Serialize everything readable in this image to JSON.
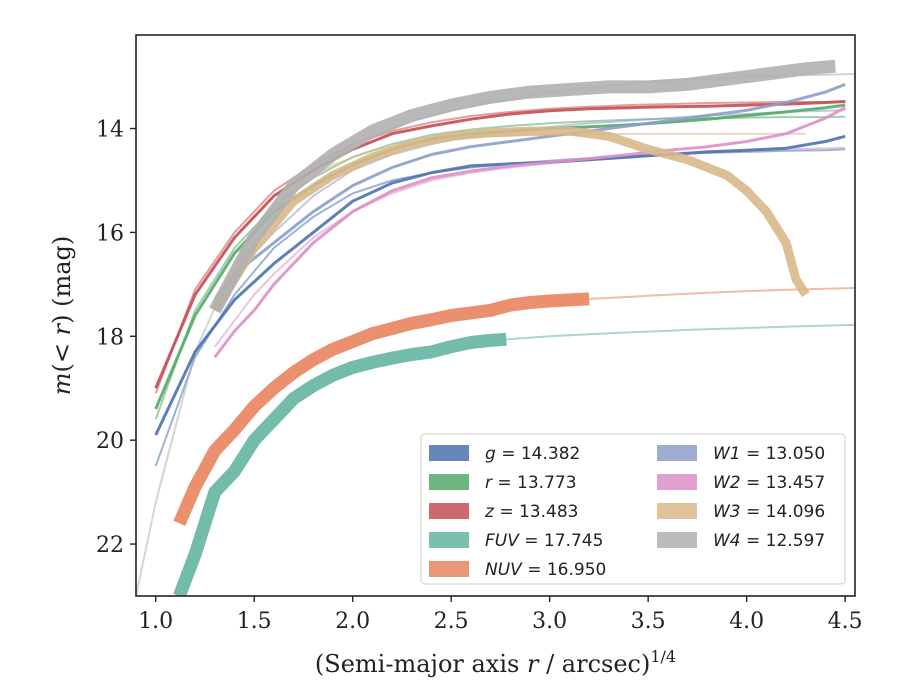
{
  "chart_data": {
    "type": "line",
    "xlabel": "(Semi-major axis r / arcsec)^1/4",
    "xlabel_parts": {
      "main": "(Semi-major axis ",
      "var": "r",
      "rest": " / arcsec)",
      "sup": "1/4"
    },
    "ylabel": "m(< r) (mag)",
    "ylabel_parts": {
      "var": "m",
      "rest": "(< ",
      "var2": "r",
      "close": ") (mag)"
    },
    "xlim": [
      0.9,
      4.55
    ],
    "ylim": [
      23.0,
      12.2
    ],
    "y_inverted": true,
    "xticks": [
      "1.0",
      "1.5",
      "2.0",
      "2.5",
      "3.0",
      "3.5",
      "4.0",
      "4.5"
    ],
    "yticks": [
      "14",
      "16",
      "18",
      "20",
      "22"
    ],
    "grid": false,
    "legend_placement": "lower-right",
    "legend_columns": 2,
    "series": [
      {
        "name": "g",
        "value": "14.382",
        "color": "#4c72b0",
        "x": [
          1.0,
          1.2,
          1.4,
          1.6,
          1.8,
          2.0,
          2.2,
          2.4,
          2.6,
          2.8,
          3.0,
          3.2,
          3.4,
          3.6,
          3.8,
          4.0,
          4.2,
          4.4,
          4.5
        ],
        "y": [
          19.9,
          18.3,
          17.3,
          16.6,
          16.0,
          15.4,
          15.05,
          14.85,
          14.72,
          14.68,
          14.65,
          14.6,
          14.55,
          14.5,
          14.45,
          14.42,
          14.38,
          14.25,
          14.15
        ],
        "model_y": [
          20.5,
          18.4,
          17.2,
          16.3,
          15.7,
          15.25,
          15.0,
          14.85,
          14.75,
          14.68,
          14.62,
          14.57,
          14.53,
          14.5,
          14.47,
          14.45,
          14.43,
          14.42,
          14.4
        ]
      },
      {
        "name": "r",
        "value": "13.773",
        "color": "#55a868",
        "x": [
          1.0,
          1.2,
          1.4,
          1.6,
          1.8,
          2.0,
          2.2,
          2.4,
          2.6,
          2.8,
          3.0,
          3.2,
          3.4,
          3.6,
          3.8,
          4.0,
          4.2,
          4.4,
          4.5
        ],
        "y": [
          19.4,
          17.6,
          16.4,
          15.6,
          15.1,
          14.7,
          14.4,
          14.2,
          14.1,
          14.05,
          14.0,
          13.97,
          13.93,
          13.88,
          13.82,
          13.75,
          13.68,
          13.6,
          13.55
        ],
        "model_y": [
          19.6,
          17.5,
          16.3,
          15.5,
          14.95,
          14.55,
          14.3,
          14.12,
          14.02,
          13.95,
          13.9,
          13.86,
          13.83,
          13.81,
          13.8,
          13.79,
          13.78,
          13.78,
          13.77
        ]
      },
      {
        "name": "z",
        "value": "13.483",
        "color": "#c44e52",
        "x": [
          1.0,
          1.2,
          1.4,
          1.6,
          1.8,
          2.0,
          2.2,
          2.4,
          2.6,
          2.8,
          3.0,
          3.2,
          3.4,
          3.6,
          3.8,
          4.0,
          4.2,
          4.4,
          4.5
        ],
        "y": [
          19.0,
          17.2,
          16.1,
          15.3,
          14.8,
          14.4,
          14.1,
          13.95,
          13.82,
          13.72,
          13.66,
          13.62,
          13.6,
          13.58,
          13.57,
          13.55,
          13.53,
          13.5,
          13.48
        ],
        "model_y": [
          19.1,
          17.1,
          16.0,
          15.2,
          14.7,
          14.3,
          14.05,
          13.88,
          13.76,
          13.68,
          13.62,
          13.58,
          13.55,
          13.53,
          13.51,
          13.5,
          13.49,
          13.49,
          13.48
        ]
      },
      {
        "name": "FUV",
        "value": "17.745",
        "color": "#64b5a0",
        "x": [
          1.12,
          1.2,
          1.3,
          1.4,
          1.5,
          1.6,
          1.7,
          1.8,
          1.9,
          2.0,
          2.1,
          2.2,
          2.3,
          2.4,
          2.5,
          2.6,
          2.7,
          2.78
        ],
        "y": [
          23.0,
          22.2,
          21.0,
          20.6,
          20.0,
          19.6,
          19.2,
          18.95,
          18.75,
          18.6,
          18.5,
          18.42,
          18.35,
          18.3,
          18.2,
          18.12,
          18.08,
          18.06
        ],
        "model_x": [
          2.78,
          3.0,
          3.25,
          3.5,
          3.75,
          4.0,
          4.25,
          4.55
        ],
        "model_y": [
          18.06,
          18.0,
          17.95,
          17.91,
          17.87,
          17.84,
          17.81,
          17.78
        ]
      },
      {
        "name": "NUV",
        "value": "16.950",
        "color": "#e8845f",
        "x": [
          1.12,
          1.2,
          1.3,
          1.4,
          1.5,
          1.6,
          1.7,
          1.8,
          1.9,
          2.0,
          2.1,
          2.2,
          2.3,
          2.4,
          2.5,
          2.6,
          2.7,
          2.8,
          2.9,
          3.0,
          3.1,
          3.2
        ],
        "y": [
          21.6,
          20.9,
          20.2,
          19.8,
          19.35,
          19.0,
          18.7,
          18.45,
          18.25,
          18.1,
          17.95,
          17.85,
          17.75,
          17.68,
          17.6,
          17.55,
          17.5,
          17.4,
          17.35,
          17.32,
          17.3,
          17.28
        ],
        "model_x": [
          3.2,
          3.5,
          3.75,
          4.0,
          4.25,
          4.55
        ],
        "model_y": [
          17.28,
          17.22,
          17.17,
          17.13,
          17.1,
          17.07
        ]
      },
      {
        "name": "W1",
        "value": "13.050",
        "color": "#8c9dc8",
        "x": [
          1.3,
          1.4,
          1.5,
          1.6,
          1.8,
          2.0,
          2.2,
          2.4,
          2.6,
          2.8,
          3.0,
          3.2,
          3.4,
          3.6,
          3.8,
          4.0,
          4.2,
          4.4,
          4.5
        ],
        "y": [
          17.3,
          16.8,
          16.5,
          16.2,
          15.6,
          15.1,
          14.75,
          14.5,
          14.35,
          14.25,
          14.15,
          14.05,
          13.95,
          13.85,
          13.75,
          13.65,
          13.5,
          13.3,
          13.15
        ],
        "model_y": [
          17.4,
          16.9,
          16.4,
          16.0,
          15.3,
          14.8,
          14.5,
          14.3,
          14.15,
          14.05,
          13.97,
          13.9,
          13.85,
          13.8,
          13.75,
          13.72,
          13.68,
          13.66,
          13.65
        ]
      },
      {
        "name": "W2",
        "value": "13.457",
        "color": "#dd8fc8",
        "x": [
          1.3,
          1.4,
          1.5,
          1.6,
          1.8,
          2.0,
          2.2,
          2.4,
          2.6,
          2.8,
          3.0,
          3.2,
          3.4,
          3.6,
          3.8,
          4.0,
          4.2,
          4.4,
          4.5
        ],
        "y": [
          18.4,
          17.9,
          17.5,
          17.0,
          16.2,
          15.6,
          15.2,
          14.95,
          14.82,
          14.72,
          14.65,
          14.58,
          14.5,
          14.42,
          14.35,
          14.25,
          14.1,
          13.8,
          13.6
        ],
        "model_y": [
          18.2,
          17.7,
          17.2,
          16.8,
          16.1,
          15.6,
          15.25,
          15.0,
          14.85,
          14.75,
          14.67,
          14.6,
          14.55,
          14.5,
          14.46,
          14.43,
          14.4,
          14.38,
          14.37
        ]
      },
      {
        "name": "W3",
        "value": "14.096",
        "color": "#d8b88a",
        "x": [
          1.3,
          1.5,
          1.7,
          1.9,
          2.1,
          2.3,
          2.5,
          2.7,
          2.9,
          3.1,
          3.3,
          3.5,
          3.7,
          3.9,
          4.0,
          4.1,
          4.2,
          4.25,
          4.3
        ],
        "y": [
          17.5,
          16.3,
          15.4,
          14.9,
          14.55,
          14.3,
          14.15,
          14.08,
          14.05,
          14.05,
          14.15,
          14.4,
          14.6,
          14.9,
          15.2,
          15.6,
          16.2,
          16.9,
          17.2
        ],
        "model_y": [
          17.4,
          16.0,
          15.2,
          14.7,
          14.42,
          14.27,
          14.19,
          14.15,
          14.13,
          14.12,
          14.11,
          14.1,
          14.1,
          14.1,
          14.1,
          14.1,
          14.1,
          14.1,
          14.1
        ]
      },
      {
        "name": "W4",
        "value": "12.597",
        "color": "#b0b0b0",
        "x": [
          1.3,
          1.5,
          1.7,
          1.9,
          2.1,
          2.3,
          2.5,
          2.7,
          2.9,
          3.1,
          3.3,
          3.5,
          3.7,
          3.9,
          4.1,
          4.3,
          4.45
        ],
        "y": [
          17.5,
          16.1,
          15.1,
          14.5,
          14.05,
          13.75,
          13.55,
          13.4,
          13.3,
          13.25,
          13.2,
          13.2,
          13.15,
          13.05,
          12.95,
          12.85,
          12.8
        ],
        "model_x": [
          0.9,
          1.0,
          1.2,
          1.4,
          1.6,
          1.8,
          2.0,
          2.3,
          2.6,
          3.0,
          3.5,
          4.0,
          4.55
        ],
        "model_y": [
          23.0,
          21.2,
          18.3,
          16.6,
          15.5,
          14.8,
          14.3,
          13.85,
          13.55,
          13.3,
          13.1,
          13.0,
          12.95
        ]
      }
    ]
  }
}
